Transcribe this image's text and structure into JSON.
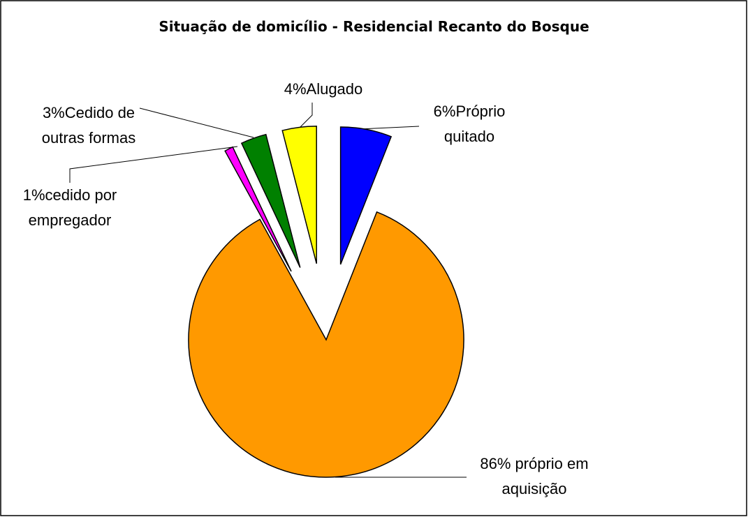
{
  "chart_data": {
    "type": "pie",
    "title": "Situação de domicílio - Residencial Recanto do Bosque",
    "categories": [
      "Próprio quitado",
      "próprio em aquisição",
      "cedido por empregador",
      "Cedido de outras formas",
      "Alugado"
    ],
    "values": [
      6,
      86,
      1,
      3,
      4
    ],
    "value_labels": [
      "6%",
      "86%",
      "1%",
      "3%",
      "4%"
    ],
    "colors": [
      "#0000ff",
      "#ff9900",
      "#ff00ff",
      "#008000",
      "#ffff00"
    ]
  }
}
